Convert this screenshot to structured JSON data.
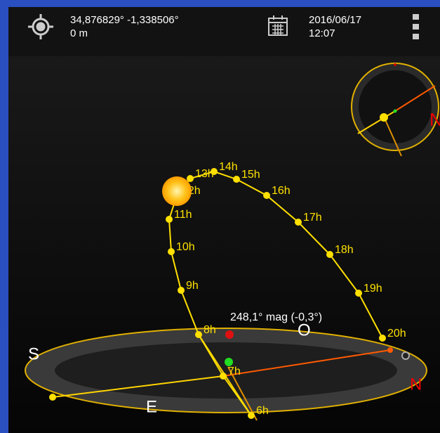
{
  "header": {
    "coordinates": "34,876829° -1,338506°",
    "altitude": "0 m",
    "date": "2016/06/17",
    "time": "12:07"
  },
  "sun_path": {
    "hours": [
      "6h",
      "7h",
      "8h",
      "9h",
      "10h",
      "11h",
      "12h",
      "13h",
      "14h",
      "15h",
      "16h",
      "17h",
      "18h",
      "19h",
      "20h"
    ],
    "annotation": "248,1° mag (-0,3°)"
  },
  "horizon": {
    "south": "S",
    "east": "E",
    "west": "O",
    "north": "N"
  },
  "mini_compass": {
    "north": "N"
  }
}
